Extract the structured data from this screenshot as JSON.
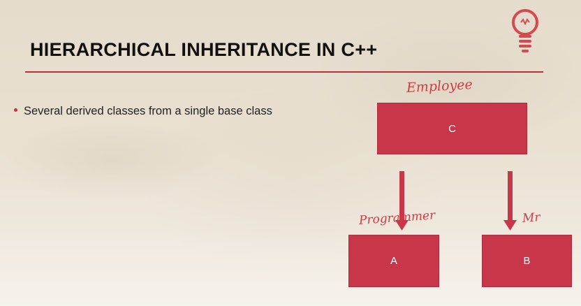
{
  "slide": {
    "title": "HIERARCHICAL INHERITANCE IN C++",
    "bullet": "Several derived classes from a single base class",
    "accent_color": "#c8364a",
    "icon": "lightbulb-icon"
  },
  "diagram": {
    "base": {
      "label": "C"
    },
    "derived": [
      {
        "label": "A"
      },
      {
        "label": "B"
      }
    ]
  },
  "annotations": {
    "employee": "Employee",
    "programmer": "Programmer",
    "mr": "Mr"
  }
}
